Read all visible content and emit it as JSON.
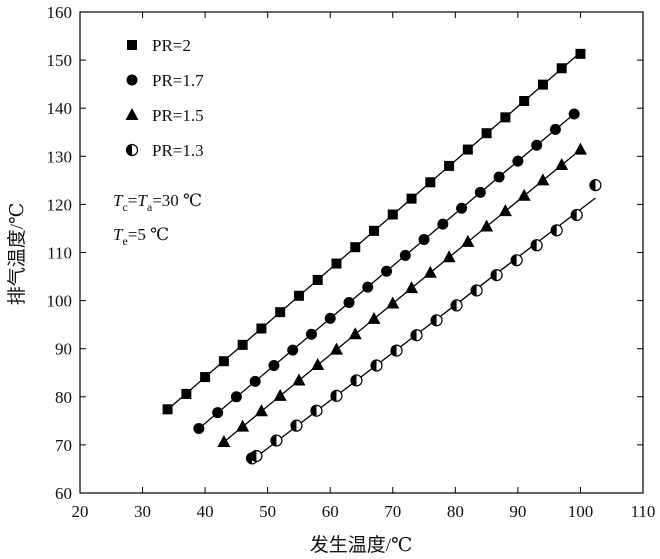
{
  "chart_data": {
    "type": "line",
    "xlabel": "发生温度/℃",
    "ylabel": "排气温度/℃",
    "xlim": [
      20,
      110
    ],
    "ylim": [
      60,
      160
    ],
    "xticks": [
      20,
      30,
      40,
      50,
      60,
      70,
      80,
      90,
      100,
      110
    ],
    "yticks": [
      60,
      70,
      80,
      90,
      100,
      110,
      120,
      130,
      140,
      150,
      160
    ],
    "grid": false,
    "legend_position": "top-left",
    "series": [
      {
        "name": "PR=2",
        "marker": "square",
        "x": [
          34,
          37,
          40,
          43,
          46,
          49,
          52,
          55,
          58,
          61,
          64,
          67,
          70,
          73,
          76,
          79,
          82,
          85,
          88,
          91,
          94,
          97,
          100
        ],
        "y": [
          77.4,
          80.6,
          84.1,
          87.4,
          90.8,
          94.2,
          97.6,
          101.0,
          104.3,
          107.7,
          111.1,
          114.5,
          117.9,
          121.2,
          124.6,
          128.0,
          131.4,
          134.8,
          138.1,
          141.5,
          144.9,
          148.3,
          151.3
        ]
      },
      {
        "name": "PR=1.7",
        "marker": "circle",
        "x": [
          39,
          42,
          45,
          48,
          51,
          54,
          57,
          60,
          63,
          66,
          69,
          72,
          75,
          78,
          81,
          84,
          87,
          90,
          93,
          96,
          99
        ],
        "y": [
          73.4,
          76.7,
          80.0,
          83.2,
          86.5,
          89.7,
          93.0,
          96.3,
          99.6,
          102.8,
          106.1,
          109.4,
          112.7,
          115.9,
          119.2,
          122.5,
          125.7,
          129.0,
          132.3,
          135.6,
          138.8
        ]
      },
      {
        "name": "PR=1.5",
        "marker": "triangle",
        "x": [
          43,
          46,
          49,
          52,
          55,
          58,
          61,
          64,
          67,
          70,
          73,
          76,
          79,
          82,
          85,
          88,
          91,
          94,
          97,
          100
        ],
        "y": [
          70.6,
          73.8,
          77.0,
          80.2,
          83.4,
          86.6,
          89.8,
          93.0,
          96.2,
          99.4,
          102.6,
          105.8,
          109.0,
          112.2,
          115.4,
          118.6,
          121.8,
          125.0,
          128.2,
          131.4
        ]
      },
      {
        "name": "PR=1.3",
        "marker": "half-circle",
        "x": [
          47.5,
          48.2,
          51.4,
          54.6,
          57.8,
          61.0,
          64.2,
          67.4,
          70.6,
          73.8,
          77.0,
          80.2,
          83.4,
          86.6,
          89.8,
          93.0,
          96.2,
          99.4,
          102.4
        ],
        "y": [
          67.2,
          67.7,
          70.9,
          74.0,
          77.1,
          80.2,
          83.4,
          86.5,
          89.6,
          92.8,
          95.9,
          99.0,
          102.1,
          105.3,
          108.4,
          111.5,
          114.6,
          117.8,
          124.0
        ]
      }
    ],
    "annotations": [
      {
        "text": "Tc=Ta=30 ℃",
        "parts": [
          [
            "T",
            ""
          ],
          [
            "c",
            "sub"
          ],
          [
            "=",
            ""
          ],
          [
            "T",
            ""
          ],
          [
            "a",
            "sub"
          ],
          [
            "=30 ℃",
            ""
          ]
        ]
      },
      {
        "text": "Te=5 ℃",
        "parts": [
          [
            "T",
            ""
          ],
          [
            "e",
            "sub"
          ],
          [
            "=5 ℃",
            ""
          ]
        ]
      }
    ]
  }
}
